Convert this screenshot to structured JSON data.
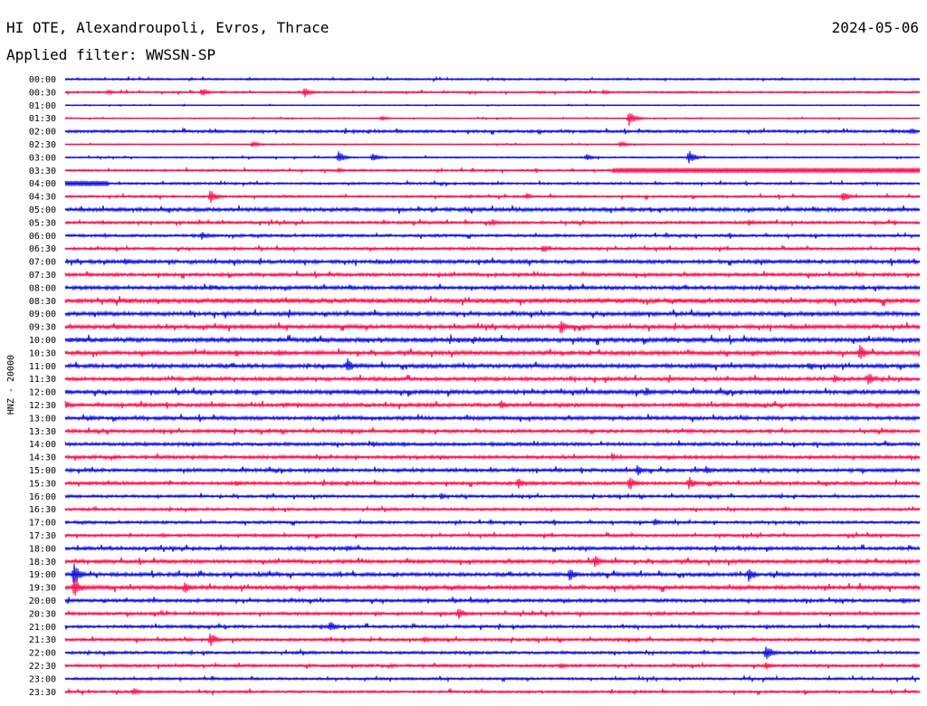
{
  "chart_data": {
    "type": "line",
    "title": "HI OTE, Alexandroupoli, Evros, Thrace",
    "date": "2024-05-06",
    "subtitle": "Applied filter: WWSSN-SP",
    "ylabel": "HNZ - 20000",
    "xlabel": "",
    "grid": false,
    "row_labels": [
      "00:00",
      "00:30",
      "01:00",
      "01:30",
      "02:00",
      "02:30",
      "03:00",
      "03:30",
      "04:00",
      "04:30",
      "05:00",
      "05:30",
      "06:00",
      "06:30",
      "07:00",
      "07:30",
      "08:00",
      "08:30",
      "09:00",
      "09:30",
      "10:00",
      "10:30",
      "11:00",
      "11:30",
      "12:00",
      "12:30",
      "13:00",
      "13:30",
      "14:00",
      "14:30",
      "15:00",
      "15:30",
      "16:00",
      "16:30",
      "17:00",
      "17:30",
      "18:00",
      "18:30",
      "19:00",
      "19:30",
      "20:00",
      "20:30",
      "21:00",
      "21:30",
      "22:00",
      "22:30",
      "23:00",
      "23:30"
    ],
    "trace_colors": [
      "#1010dd",
      "#ff1050"
    ],
    "noise_level": [
      1.0,
      1.0,
      0.5,
      0.6,
      1.5,
      0.6,
      0.8,
      1.2,
      1.2,
      1.2,
      2.0,
      1.5,
      1.5,
      1.5,
      2.0,
      1.8,
      2.0,
      2.6,
      2.2,
      2.2,
      2.5,
      2.2,
      2.2,
      2.0,
      2.2,
      2.0,
      2.0,
      1.8,
      1.8,
      1.8,
      1.8,
      1.8,
      1.5,
      1.5,
      1.5,
      1.5,
      1.8,
      2.0,
      2.0,
      2.2,
      1.8,
      1.6,
      1.6,
      1.6,
      1.5,
      1.5,
      1.3,
      1.3
    ],
    "events": [
      {
        "row": 1,
        "t": 0.05,
        "amp": 3
      },
      {
        "row": 1,
        "t": 0.16,
        "amp": 5
      },
      {
        "row": 1,
        "t": 0.28,
        "amp": 6
      },
      {
        "row": 1,
        "t": 0.63,
        "amp": 3
      },
      {
        "row": 3,
        "t": 0.37,
        "amp": 3
      },
      {
        "row": 3,
        "t": 0.66,
        "amp": 9
      },
      {
        "row": 4,
        "t": 0.99,
        "amp": 4
      },
      {
        "row": 5,
        "t": 0.22,
        "amp": 4
      },
      {
        "row": 5,
        "t": 0.65,
        "amp": 4
      },
      {
        "row": 6,
        "t": 0.32,
        "amp": 7
      },
      {
        "row": 6,
        "t": 0.36,
        "amp": 6
      },
      {
        "row": 6,
        "t": 0.61,
        "amp": 4
      },
      {
        "row": 6,
        "t": 0.73,
        "amp": 8
      },
      {
        "row": 7,
        "t": 0.32,
        "amp": 3
      },
      {
        "row": 7,
        "t": 0.88,
        "amp": 3
      },
      {
        "row": 8,
        "t": 0.02,
        "amp": 3
      },
      {
        "row": 9,
        "t": 0.17,
        "amp": 8
      },
      {
        "row": 9,
        "t": 0.54,
        "amp": 4
      },
      {
        "row": 9,
        "t": 0.91,
        "amp": 7
      },
      {
        "row": 11,
        "t": 0.5,
        "amp": 4
      },
      {
        "row": 11,
        "t": 0.8,
        "amp": 4
      },
      {
        "row": 12,
        "t": 0.16,
        "amp": 5
      },
      {
        "row": 13,
        "t": 0.56,
        "amp": 5
      },
      {
        "row": 14,
        "t": 0.07,
        "amp": 5
      },
      {
        "row": 16,
        "t": 0.17,
        "amp": 4
      },
      {
        "row": 16,
        "t": 0.59,
        "amp": 4
      },
      {
        "row": 19,
        "t": 0.06,
        "amp": 4
      },
      {
        "row": 19,
        "t": 0.58,
        "amp": 9
      },
      {
        "row": 21,
        "t": 0.2,
        "amp": 5
      },
      {
        "row": 21,
        "t": 0.25,
        "amp": 5
      },
      {
        "row": 21,
        "t": 0.93,
        "amp": 10
      },
      {
        "row": 22,
        "t": 0.33,
        "amp": 9
      },
      {
        "row": 22,
        "t": 0.87,
        "amp": 5
      },
      {
        "row": 23,
        "t": 0.9,
        "amp": 6
      },
      {
        "row": 23,
        "t": 0.94,
        "amp": 8
      },
      {
        "row": 24,
        "t": 0.2,
        "amp": 4
      },
      {
        "row": 24,
        "t": 0.68,
        "amp": 6
      },
      {
        "row": 25,
        "t": 0.0,
        "amp": 6
      },
      {
        "row": 25,
        "t": 0.51,
        "amp": 6
      },
      {
        "row": 26,
        "t": 0.03,
        "amp": 4
      },
      {
        "row": 28,
        "t": 0.36,
        "amp": 4
      },
      {
        "row": 29,
        "t": 0.64,
        "amp": 5
      },
      {
        "row": 30,
        "t": 0.67,
        "amp": 7
      },
      {
        "row": 30,
        "t": 0.75,
        "amp": 5
      },
      {
        "row": 31,
        "t": 0.2,
        "amp": 4
      },
      {
        "row": 31,
        "t": 0.53,
        "amp": 7
      },
      {
        "row": 31,
        "t": 0.66,
        "amp": 9
      },
      {
        "row": 31,
        "t": 0.73,
        "amp": 8
      },
      {
        "row": 32,
        "t": 0.44,
        "amp": 4
      },
      {
        "row": 34,
        "t": 0.69,
        "amp": 5
      },
      {
        "row": 36,
        "t": 0.33,
        "amp": 4
      },
      {
        "row": 37,
        "t": 0.62,
        "amp": 8
      },
      {
        "row": 38,
        "t": 0.01,
        "amp": 14
      },
      {
        "row": 38,
        "t": 0.59,
        "amp": 8
      },
      {
        "row": 38,
        "t": 0.8,
        "amp": 9
      },
      {
        "row": 39,
        "t": 0.01,
        "amp": 12
      },
      {
        "row": 39,
        "t": 0.14,
        "amp": 8
      },
      {
        "row": 40,
        "t": 0.98,
        "amp": 4
      },
      {
        "row": 41,
        "t": 0.46,
        "amp": 7
      },
      {
        "row": 42,
        "t": 0.31,
        "amp": 7
      },
      {
        "row": 43,
        "t": 0.17,
        "amp": 9
      },
      {
        "row": 43,
        "t": 0.42,
        "amp": 4
      },
      {
        "row": 44,
        "t": 0.82,
        "amp": 10
      },
      {
        "row": 45,
        "t": 0.58,
        "amp": 4
      },
      {
        "row": 45,
        "t": 0.82,
        "amp": 5
      },
      {
        "row": 47,
        "t": 0.08,
        "amp": 5
      }
    ],
    "bursts": [
      {
        "row": 7,
        "start": 0.64,
        "end": 1.0,
        "amp": 3
      },
      {
        "row": 8,
        "start": 0.0,
        "end": 0.05,
        "amp": 3
      }
    ]
  }
}
